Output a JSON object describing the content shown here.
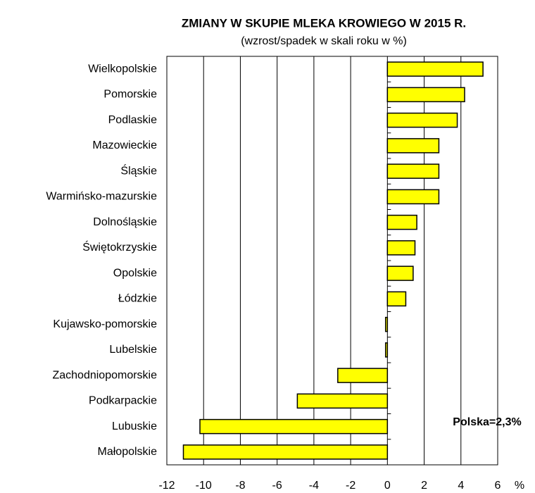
{
  "chart_data": {
    "type": "hbar",
    "title": "ZMIANY W SKUPIE MLEKA KROWIEGO W  2015 R.",
    "subtitle": "(wzrost/spadek w skali roku w %)",
    "categories": [
      "Wielkopolskie",
      "Pomorskie",
      "Podlaskie",
      "Mazowieckie",
      "Śląskie",
      "Warmińsko-mazurskie",
      "Dolnośląskie",
      "Świętokrzyskie",
      "Opolskie",
      "Łódzkie",
      "Kujawsko-pomorskie",
      "Lubelskie",
      "Zachodniopomorskie",
      "Podkarpackie",
      "Lubuskie",
      "Małopolskie"
    ],
    "values": [
      5.2,
      4.2,
      3.8,
      2.8,
      2.8,
      2.8,
      1.6,
      1.5,
      1.4,
      1.0,
      -0.1,
      -0.1,
      -2.7,
      -4.9,
      -10.2,
      -11.1
    ],
    "color": "#ffff00",
    "xlim": [
      -12,
      6
    ],
    "xticks": [
      -12,
      -10,
      -8,
      -6,
      -4,
      -2,
      0,
      2,
      4,
      6
    ],
    "xlabel": "%",
    "annotation": "Polska=2,3%",
    "grid": true
  }
}
